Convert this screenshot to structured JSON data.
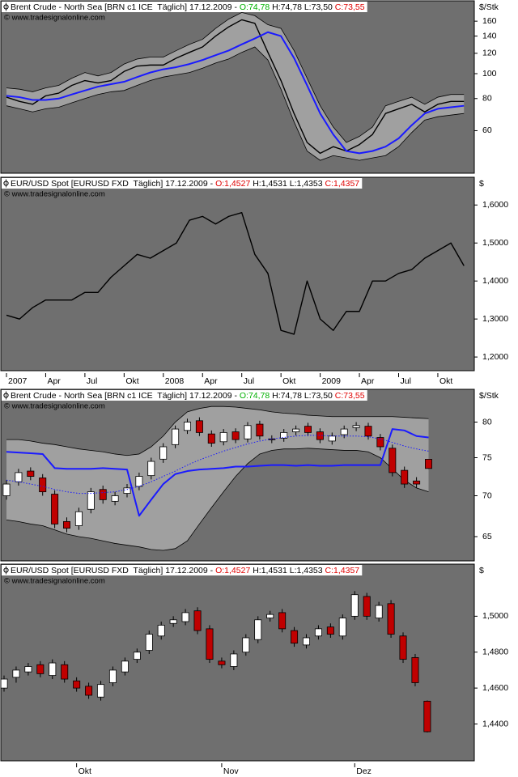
{
  "chart_data": [
    {
      "type": "line",
      "log": true,
      "title": "Brent Crude - North Sea [BRN c1 ICE  Täglich] 17.12.2009 - ",
      "open_label": "O:74,78",
      "high_low_label": " H:74,78 L:73,50 ",
      "close_label": "C:73,55",
      "open_color": "#00b000",
      "close_color": "#e00000",
      "source": "© www.tradesignalonline.com",
      "ylabel": "$/Stk",
      "ylim": [
        41,
        192
      ],
      "yticks": [
        160,
        140,
        120,
        100,
        80,
        60
      ],
      "grid": false,
      "band": {
        "color": "#a0a0a0",
        "upper": [
          88,
          87,
          85,
          88,
          90,
          96,
          101,
          98,
          101,
          109,
          114,
          116,
          116,
          123,
          130,
          136,
          150,
          163,
          173,
          168,
          155,
          150,
          123,
          96,
          75,
          62,
          54,
          57,
          62,
          75,
          78,
          81,
          76,
          81,
          83,
          83
        ],
        "lower": [
          75,
          73,
          71,
          73,
          74,
          77,
          80,
          83,
          85,
          86,
          90,
          94,
          97,
          99,
          101,
          105,
          110,
          114,
          121,
          127,
          113,
          87,
          65,
          50,
          46,
          48,
          47,
          46,
          47,
          48,
          52,
          59,
          66,
          68,
          69,
          70
        ]
      },
      "series": [
        {
          "color": "#000000",
          "values": [
            81,
            78,
            76,
            82,
            84,
            90,
            94,
            92,
            94,
            102,
            107,
            108,
            108,
            115,
            121,
            127,
            140,
            152,
            162,
            157,
            121,
            94,
            70,
            54,
            49,
            52,
            50,
            53,
            58,
            70,
            73,
            76,
            71,
            76,
            78,
            78
          ]
        },
        {
          "color": "#1a1aff",
          "values": [
            82,
            81,
            79,
            79,
            80,
            83,
            86,
            89,
            91,
            93,
            97,
            101,
            104,
            106,
            109,
            113,
            118,
            123,
            130,
            137,
            145,
            140,
            115,
            90,
            70,
            58,
            50,
            49,
            50,
            52,
            56,
            63,
            70,
            73,
            74,
            75
          ]
        }
      ]
    },
    {
      "type": "line",
      "log": false,
      "title": "EUR/USD Spot [EURUSD FXD  Täglich] 17.12.2009 - ",
      "open_label": "O:1,4527",
      "high_low_label": " H:1,4531 L:1,4353 ",
      "close_label": "C:1,4357",
      "open_color": "#e00000",
      "close_color": "#e00000",
      "source": "© www.tradesignalonline.com",
      "ylabel": "$",
      "ylim": [
        1.164,
        1.673
      ],
      "yticks": [
        {
          "value": 1.6,
          "label": "1,6000"
        },
        {
          "value": 1.5,
          "label": "1,5000"
        },
        {
          "value": 1.4,
          "label": "1,4000"
        },
        {
          "value": 1.3,
          "label": "1,3000"
        },
        {
          "value": 1.2,
          "label": "1,2000"
        }
      ],
      "grid": false,
      "categories": [
        "2007",
        null,
        null,
        "Apr",
        null,
        null,
        "Jul",
        null,
        null,
        "Okt",
        null,
        null,
        "2008",
        null,
        null,
        "Apr",
        null,
        null,
        "Jul",
        null,
        null,
        "Okt",
        null,
        null,
        "2009",
        null,
        null,
        "Apr",
        null,
        null,
        "Jul",
        null,
        null,
        "Okt",
        null,
        null
      ],
      "series": [
        {
          "color": "#000000",
          "values": [
            1.31,
            1.3,
            1.33,
            1.35,
            1.35,
            1.35,
            1.37,
            1.37,
            1.41,
            1.44,
            1.47,
            1.46,
            1.48,
            1.5,
            1.56,
            1.57,
            1.55,
            1.57,
            1.58,
            1.47,
            1.42,
            1.27,
            1.26,
            1.4,
            1.3,
            1.27,
            1.32,
            1.32,
            1.4,
            1.4,
            1.42,
            1.43,
            1.46,
            1.48,
            1.5,
            1.44
          ]
        }
      ]
    },
    {
      "type": "candlestick",
      "log": true,
      "title": "Brent Crude - North Sea [BRN c1 ICE  Täglich] 17.12.2009 - ",
      "open_label": "O:74,78",
      "high_low_label": " H:74,78 L:73,50 ",
      "close_label": "C:73,55",
      "open_color": "#00b000",
      "close_color": "#e00000",
      "source": "© www.tradesignalonline.com",
      "ylabel": "$/Stk",
      "ylim": [
        62.2,
        84.9
      ],
      "yticks": [
        80,
        75,
        70,
        65
      ],
      "grid": false,
      "up_color": "#ffffff",
      "down_color": "#c00000",
      "open": [
        70.0,
        71.8,
        73.2,
        72.3,
        70.2,
        66.8,
        66.3,
        68.3,
        70.8,
        69.3,
        70.3,
        71.2,
        72.6,
        74.8,
        76.8,
        78.8,
        80.2,
        78.3,
        77.2,
        78.6,
        77.6,
        79.7,
        77.6,
        77.7,
        78.6,
        79.4,
        78.6,
        77.3,
        78.2,
        79.2,
        79.4,
        77.8,
        76.3,
        73.3,
        71.9,
        74.78
      ],
      "high": [
        72.0,
        73.5,
        73.7,
        72.8,
        70.7,
        67.3,
        68.5,
        71.0,
        71.3,
        70.5,
        71.5,
        73.0,
        75.0,
        77.0,
        79.5,
        80.5,
        80.7,
        78.8,
        79.0,
        79.1,
        80.0,
        80.2,
        78.1,
        79.0,
        79.5,
        79.9,
        79.1,
        78.5,
        79.5,
        80.0,
        79.9,
        78.3,
        76.8,
        73.8,
        72.4,
        74.78
      ],
      "low": [
        69.5,
        71.3,
        72.0,
        70.0,
        66.0,
        65.5,
        65.8,
        67.8,
        69.0,
        68.8,
        69.8,
        70.7,
        72.1,
        74.3,
        76.3,
        78.3,
        78.0,
        76.5,
        76.7,
        77.0,
        77.1,
        77.5,
        77.0,
        77.2,
        78.1,
        78.0,
        77.0,
        76.8,
        77.7,
        78.7,
        77.5,
        76.0,
        72.5,
        71.0,
        71.0,
        73.5
      ],
      "close": [
        71.5,
        73.0,
        72.5,
        70.5,
        66.5,
        66.0,
        68.0,
        70.5,
        69.5,
        70.0,
        71.0,
        72.5,
        74.5,
        76.5,
        79.0,
        80.0,
        78.5,
        77.0,
        78.5,
        77.5,
        79.5,
        78.0,
        77.5,
        78.5,
        79.0,
        78.5,
        77.5,
        78.0,
        79.0,
        79.5,
        78.0,
        76.5,
        73.0,
        71.5,
        71.5,
        73.55
      ],
      "band": {
        "color": "#a0a0a0",
        "upper": [
          77.5,
          77.5,
          77.3,
          77.0,
          76.8,
          76.5,
          76.2,
          76.0,
          75.8,
          75.5,
          75.3,
          75.5,
          76.5,
          78.0,
          80.0,
          81.5,
          82.0,
          82.3,
          82.3,
          82.2,
          82.0,
          81.8,
          81.5,
          81.3,
          81.2,
          81.0,
          80.9,
          80.8,
          80.8,
          80.8,
          80.8,
          80.8,
          80.8,
          80.7,
          80.6,
          80.5
        ],
        "lower": [
          67.0,
          66.8,
          66.5,
          66.3,
          65.8,
          65.3,
          65.0,
          64.8,
          64.5,
          64.2,
          64.0,
          63.8,
          63.5,
          63.4,
          63.6,
          64.5,
          66.5,
          68.5,
          70.5,
          72.5,
          74.2,
          75.5,
          76.0,
          76.2,
          76.2,
          76.3,
          76.2,
          76.1,
          76.0,
          76.0,
          75.8,
          75.0,
          73.5,
          72.0,
          71.0,
          70.5
        ]
      },
      "series": [
        {
          "color": "#1a1aff",
          "dashed": true,
          "values": [
            72.0,
            71.8,
            71.5,
            71.2,
            70.8,
            70.5,
            70.3,
            70.3,
            70.4,
            70.5,
            70.8,
            71.2,
            71.8,
            72.5,
            73.2,
            74.0,
            74.7,
            75.3,
            75.9,
            76.4,
            76.9,
            77.3,
            77.6,
            77.8,
            78.0,
            78.1,
            78.1,
            78.0,
            78.0,
            78.0,
            77.9,
            77.6,
            77.1,
            76.6,
            76.2,
            75.9
          ]
        },
        {
          "color": "#1a1aff",
          "values": [
            75.8,
            75.7,
            75.6,
            75.5,
            73.6,
            73.5,
            73.5,
            73.5,
            73.6,
            73.5,
            73.4,
            67.5,
            69.5,
            71.5,
            72.8,
            73.2,
            73.4,
            73.5,
            73.6,
            73.8,
            73.8,
            73.9,
            74.0,
            74.0,
            73.9,
            74.0,
            73.9,
            73.9,
            74.0,
            74.0,
            74.0,
            74.0,
            79.0,
            78.8,
            78.0,
            77.8
          ]
        }
      ]
    },
    {
      "type": "candlestick",
      "log": false,
      "title": "EUR/USD Spot [EURUSD FXD  Täglich] 17.12.2009 - ",
      "open_label": "O:1,4527",
      "high_low_label": " H:1,4531 L:1,4353 ",
      "close_label": "C:1,4357",
      "open_color": "#e00000",
      "close_color": "#e00000",
      "source": "© www.tradesignalonline.com",
      "ylabel": "$",
      "ylim": [
        1.4195,
        1.529
      ],
      "yticks": [
        {
          "value": 1.5,
          "label": "1,5000"
        },
        {
          "value": 1.48,
          "label": "1,4800"
        },
        {
          "value": 1.46,
          "label": "1,4600"
        },
        {
          "value": 1.44,
          "label": "1,4400"
        }
      ],
      "grid": false,
      "up_color": "#ffffff",
      "down_color": "#c00000",
      "categories": [
        null,
        null,
        null,
        null,
        null,
        null,
        "Okt",
        null,
        null,
        null,
        null,
        null,
        null,
        null,
        null,
        null,
        null,
        null,
        "Nov",
        null,
        null,
        null,
        null,
        null,
        null,
        null,
        null,
        null,
        null,
        "Dez",
        null,
        null,
        null,
        null,
        null,
        null
      ],
      "open": [
        1.46,
        1.466,
        1.469,
        1.473,
        1.467,
        1.473,
        1.464,
        1.461,
        1.455,
        1.463,
        1.469,
        1.476,
        1.481,
        1.489,
        1.496,
        1.497,
        1.503,
        1.493,
        1.475,
        1.472,
        1.48,
        1.487,
        1.499,
        1.502,
        1.492,
        1.484,
        1.489,
        1.494,
        1.489,
        1.5,
        1.511,
        1.499,
        1.507,
        1.489,
        1.477,
        1.4527
      ],
      "high": [
        1.467,
        1.472,
        1.474,
        1.475,
        1.476,
        1.475,
        1.466,
        1.463,
        1.464,
        1.472,
        1.477,
        1.482,
        1.492,
        1.497,
        1.5,
        1.504,
        1.505,
        1.495,
        1.477,
        1.481,
        1.49,
        1.5,
        1.503,
        1.504,
        1.494,
        1.49,
        1.495,
        1.496,
        1.501,
        1.514,
        1.513,
        1.508,
        1.509,
        1.491,
        1.479,
        1.4531
      ],
      "low": [
        1.458,
        1.463,
        1.467,
        1.466,
        1.465,
        1.463,
        1.458,
        1.454,
        1.453,
        1.461,
        1.467,
        1.474,
        1.479,
        1.487,
        1.494,
        1.495,
        1.49,
        1.474,
        1.471,
        1.47,
        1.478,
        1.485,
        1.497,
        1.491,
        1.483,
        1.482,
        1.487,
        1.488,
        1.487,
        1.498,
        1.498,
        1.497,
        1.488,
        1.474,
        1.461,
        1.4353
      ],
      "close": [
        1.465,
        1.47,
        1.472,
        1.468,
        1.474,
        1.465,
        1.46,
        1.456,
        1.462,
        1.47,
        1.475,
        1.48,
        1.49,
        1.495,
        1.498,
        1.502,
        1.492,
        1.476,
        1.473,
        1.479,
        1.488,
        1.498,
        1.501,
        1.493,
        1.485,
        1.488,
        1.493,
        1.49,
        1.499,
        1.512,
        1.5,
        1.506,
        1.49,
        1.476,
        1.463,
        1.4357
      ]
    }
  ]
}
